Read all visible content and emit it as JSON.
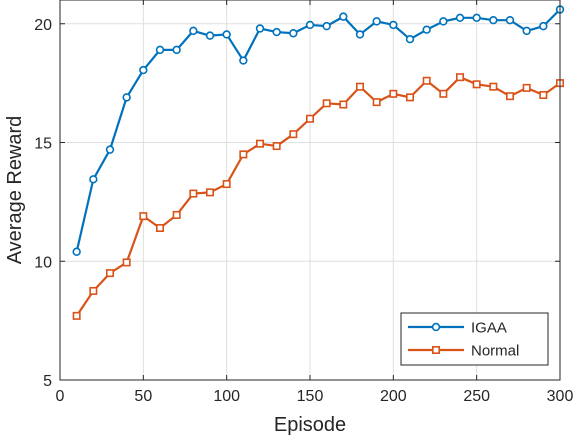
{
  "chart_data": {
    "type": "line",
    "xlabel": "Episode",
    "ylabel": "Average Reward",
    "xlim": [
      0,
      300
    ],
    "ylim": [
      5,
      21
    ],
    "xticks": [
      0,
      50,
      100,
      150,
      200,
      250,
      300
    ],
    "yticks": [
      5,
      10,
      15,
      20
    ],
    "grid": true,
    "legend_position": "bottom-right",
    "x": [
      10,
      20,
      30,
      40,
      50,
      60,
      70,
      80,
      90,
      100,
      110,
      120,
      130,
      140,
      150,
      160,
      170,
      180,
      190,
      200,
      210,
      220,
      230,
      240,
      250,
      260,
      270,
      280,
      290,
      300
    ],
    "series": [
      {
        "name": "IGAA",
        "color": "#0072BD",
        "marker": "circle",
        "values": [
          10.4,
          13.45,
          14.7,
          16.9,
          18.05,
          18.9,
          18.9,
          19.7,
          19.5,
          19.55,
          18.45,
          19.8,
          19.65,
          19.6,
          19.95,
          19.9,
          20.3,
          19.55,
          20.1,
          19.95,
          19.35,
          19.75,
          20.1,
          20.25,
          20.25,
          20.15,
          20.15,
          19.7,
          19.9,
          20.6
        ]
      },
      {
        "name": "Normal",
        "color": "#D95319",
        "marker": "square",
        "values": [
          7.7,
          8.75,
          9.5,
          9.95,
          11.9,
          11.4,
          11.95,
          12.85,
          12.9,
          13.25,
          14.5,
          14.95,
          14.85,
          15.35,
          16.0,
          16.65,
          16.6,
          17.35,
          16.7,
          17.05,
          16.9,
          17.6,
          17.05,
          17.75,
          17.45,
          17.35,
          16.95,
          17.3,
          17.0,
          17.5
        ]
      }
    ]
  }
}
